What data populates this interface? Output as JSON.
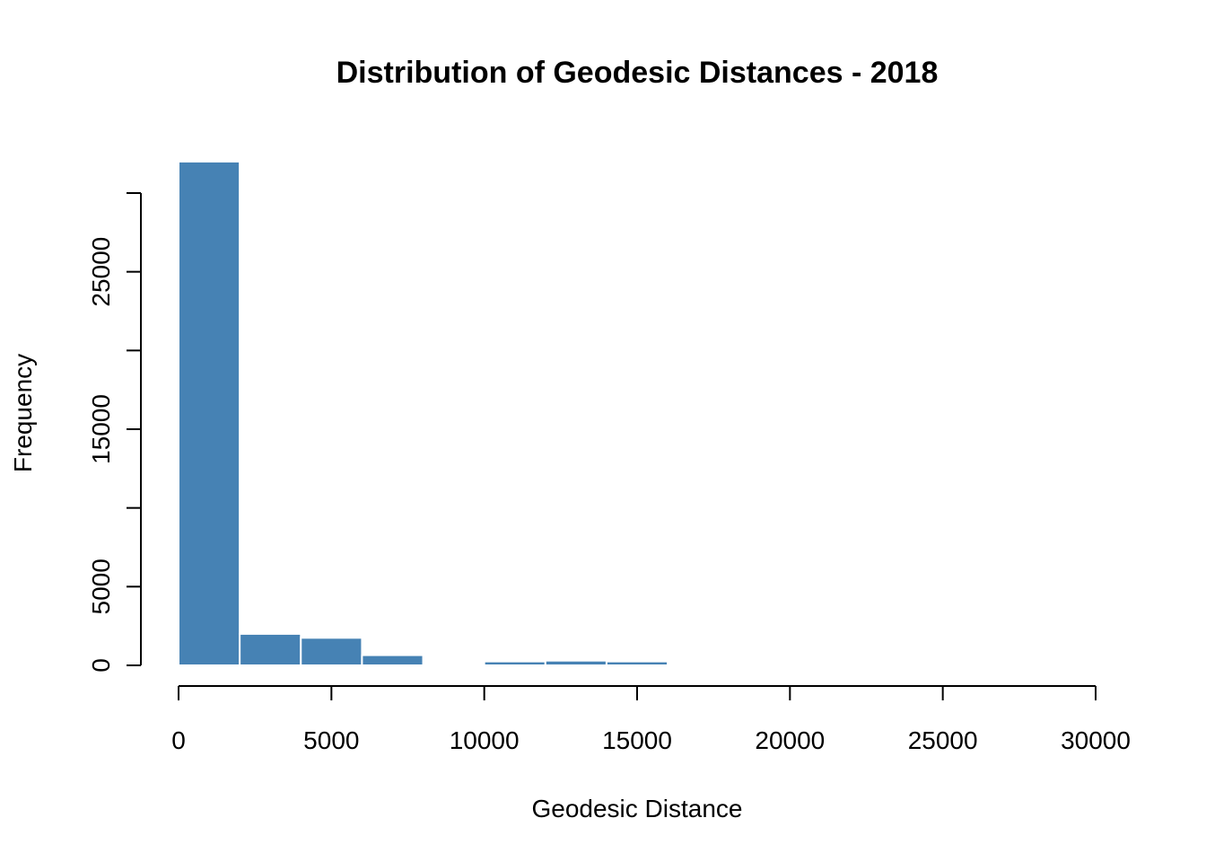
{
  "chart_data": {
    "type": "bar",
    "subtype": "histogram",
    "title": "Distribution of Geodesic Distances - 2018",
    "xlabel": "Geodesic Distance",
    "ylabel": "Frequency",
    "bar_color": "#4682B4",
    "bar_border_color": "#FFFFFF",
    "xlim": [
      0,
      30000
    ],
    "ylim": [
      0,
      30000
    ],
    "x_ticks": [
      0,
      5000,
      10000,
      15000,
      20000,
      25000,
      30000
    ],
    "x_tick_labels": [
      "0",
      "5000",
      "10000",
      "15000",
      "20000",
      "25000",
      "30000"
    ],
    "y_ticks": [
      0,
      5000,
      10000,
      15000,
      20000,
      25000,
      30000
    ],
    "y_tick_labels": [
      "0",
      "5000",
      "",
      "15000",
      "",
      "25000",
      ""
    ],
    "bins": [
      {
        "x0": 0,
        "x1": 2000,
        "count": 32000
      },
      {
        "x0": 2000,
        "x1": 4000,
        "count": 2000
      },
      {
        "x0": 4000,
        "x1": 6000,
        "count": 1750
      },
      {
        "x0": 6000,
        "x1": 8000,
        "count": 650
      },
      {
        "x0": 8000,
        "x1": 10000,
        "count": 0
      },
      {
        "x0": 10000,
        "x1": 12000,
        "count": 250
      },
      {
        "x0": 12000,
        "x1": 14000,
        "count": 300
      },
      {
        "x0": 14000,
        "x1": 16000,
        "count": 250
      }
    ],
    "grid": false,
    "legend": "none"
  }
}
